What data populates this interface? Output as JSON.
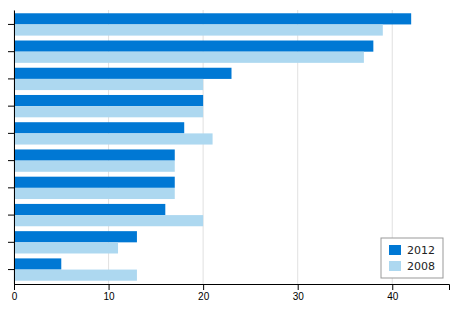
{
  "chart_data": {
    "type": "bar",
    "orientation": "horizontal",
    "categories": [
      null,
      null,
      null,
      null,
      null,
      null,
      null,
      null,
      null,
      null
    ],
    "series": [
      {
        "name": "2012",
        "color": "#0078d4",
        "values": [
          5,
          13,
          16,
          17,
          17,
          18,
          20,
          23,
          38,
          42
        ]
      },
      {
        "name": "2008",
        "color": "#add8f0",
        "values": [
          13,
          11,
          20,
          17,
          17,
          21,
          20,
          20,
          37,
          39
        ]
      }
    ],
    "xlim": [
      0,
      46
    ],
    "xticks": [
      0,
      10,
      20,
      30,
      40
    ],
    "grid": true,
    "legend": "lower right",
    "tick_labels": "x"
  }
}
